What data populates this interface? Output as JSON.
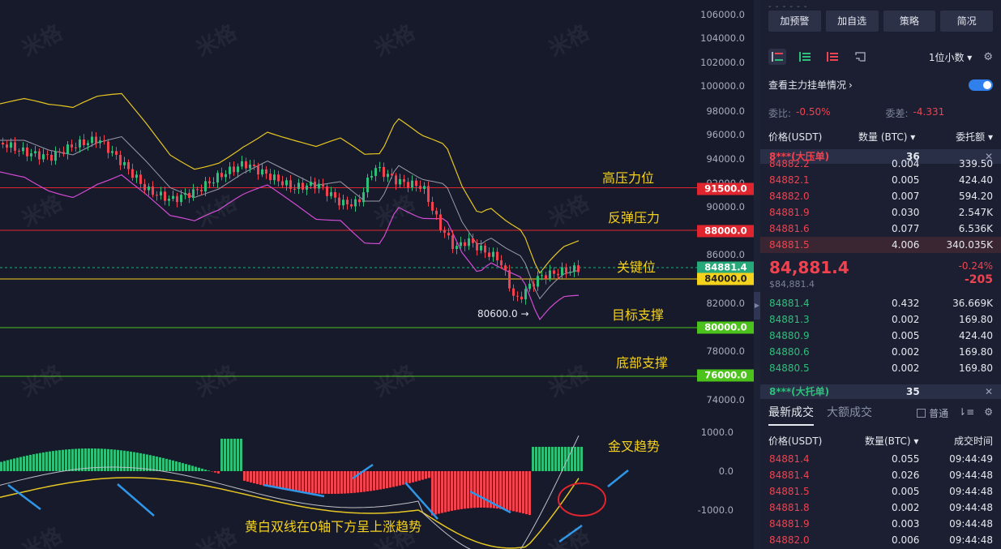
{
  "chart": {
    "axis_ticks": [
      "106000.0",
      "104000.0",
      "102000.0",
      "100000.0",
      "98000.0",
      "96000.0",
      "94000.0",
      "92000.0",
      "90000.0",
      "86000.0",
      "84000.0",
      "82000.0",
      "78000.0",
      "74000.0"
    ],
    "macd_ticks": [
      "1000.0",
      "0.0",
      "-1000.0"
    ],
    "price_tags": [
      {
        "label": "91500.0",
        "color": "#e0252f"
      },
      {
        "label": "88000.0",
        "color": "#e0252f"
      },
      {
        "label": "84881.4",
        "color": "#28a97a"
      },
      {
        "label": "84000.0",
        "color": "#f5d21c"
      },
      {
        "label": "80000.0",
        "color": "#4cc21c"
      },
      {
        "label": "76000.0",
        "color": "#4cc21c"
      }
    ],
    "annotations": {
      "high_pressure": "高压力位",
      "rebound_pressure": "反弹压力",
      "key_level": "关键位",
      "target_support": "目标支撑",
      "bottom_support": "底部支撑",
      "golden_cross": "金叉趋势",
      "macd_note": "黄白双线在0轴下方呈上涨趋势",
      "low_label": "80600.0 →"
    },
    "watermark": "米格"
  },
  "panel": {
    "dashes": "- - - - - -",
    "buttons": [
      "加预警",
      "加自选",
      "策略",
      "简况"
    ],
    "decimals": "1位小数 ▾",
    "main_orders": "查看主力挂单情况",
    "ratio_label": "委比:",
    "ratio_value": "-0.50%",
    "diff_label": "委差:",
    "diff_value": "-4.331",
    "header": {
      "price": "价格(USDT)",
      "qty": "数量 (BTC) ▾",
      "amount": "委托额 ▾"
    },
    "ask_band": {
      "name": "8***(大压单)",
      "count": "36"
    },
    "asks": [
      {
        "price": "84882.2",
        "qty": "0.004",
        "amt": "339.50"
      },
      {
        "price": "84882.1",
        "qty": "0.005",
        "amt": "424.40"
      },
      {
        "price": "84882.0",
        "qty": "0.007",
        "amt": "594.20"
      },
      {
        "price": "84881.9",
        "qty": "0.030",
        "amt": "2.547K"
      },
      {
        "price": "84881.6",
        "qty": "0.077",
        "amt": "6.536K"
      },
      {
        "price": "84881.5",
        "qty": "4.006",
        "amt": "340.035K"
      }
    ],
    "last_price": "84,881.4",
    "last_sub": "$84,881.4",
    "change_pct": "-0.24%",
    "change": "-205",
    "bids": [
      {
        "price": "84881.4",
        "qty": "0.432",
        "amt": "36.669K"
      },
      {
        "price": "84881.3",
        "qty": "0.002",
        "amt": "169.80"
      },
      {
        "price": "84880.9",
        "qty": "0.005",
        "amt": "424.40"
      },
      {
        "price": "84880.6",
        "qty": "0.002",
        "amt": "169.80"
      },
      {
        "price": "84880.5",
        "qty": "0.002",
        "amt": "169.80"
      }
    ],
    "bid_band": {
      "name": "8***(大托单)",
      "count": "35"
    },
    "tab_latest": "最新成交",
    "tab_large": "大额成交",
    "normal": "普通",
    "trade_header": {
      "price": "价格(USDT)",
      "qty": "数量(BTC) ▾",
      "time": "成交时间"
    },
    "trades": [
      {
        "price": "84881.4",
        "qty": "0.055",
        "time": "09:44:49"
      },
      {
        "price": "84881.4",
        "qty": "0.026",
        "time": "09:44:48"
      },
      {
        "price": "84881.5",
        "qty": "0.005",
        "time": "09:44:48"
      },
      {
        "price": "84881.8",
        "qty": "0.002",
        "time": "09:44:48"
      },
      {
        "price": "84881.9",
        "qty": "0.003",
        "time": "09:44:48"
      },
      {
        "price": "84882.0",
        "qty": "0.006",
        "time": "09:44:48"
      }
    ]
  }
}
